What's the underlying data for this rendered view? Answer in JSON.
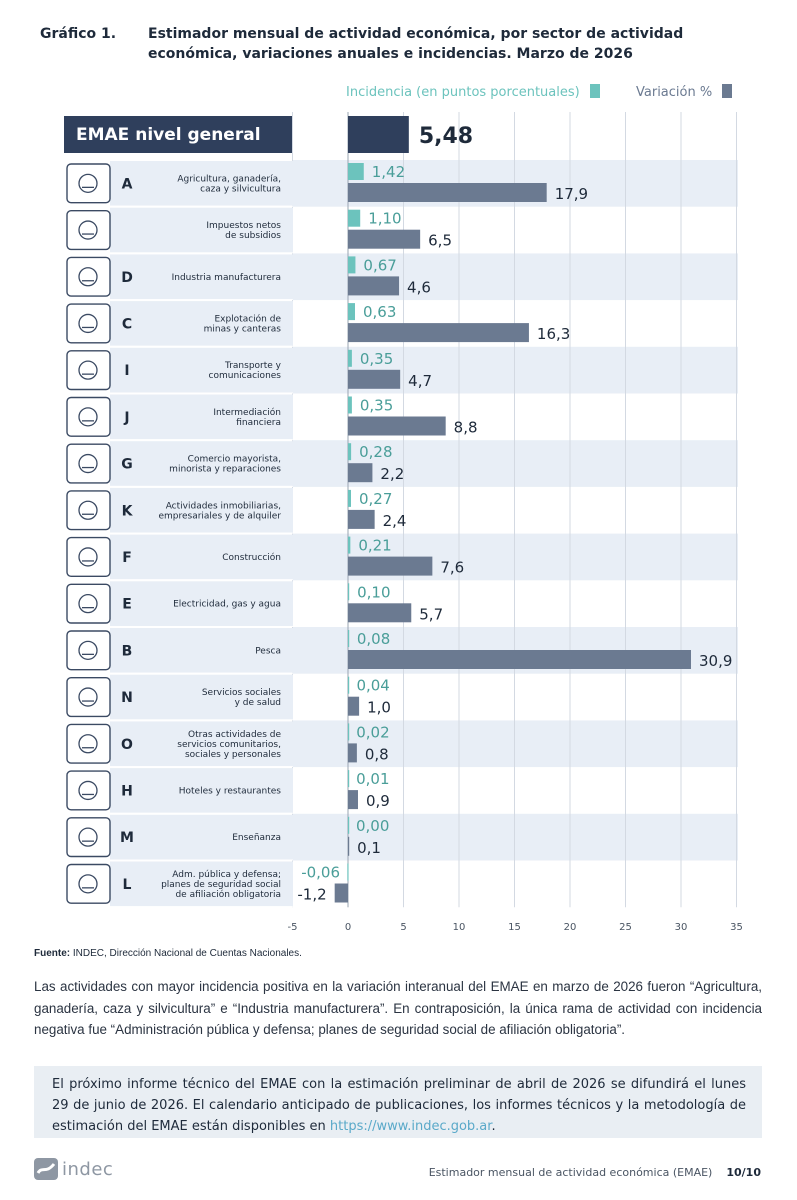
{
  "header": {
    "label": "Gráfico 1.",
    "title": "Estimador mensual de actividad económica, por sector de actividad económica, variaciones anuales e incidencias. Marzo de 2026"
  },
  "legend": {
    "incidence": "Incidencia (en puntos porcentuales)",
    "variation": "Variación %"
  },
  "colors": {
    "incidence": "#6cc3bd",
    "variation": "#6b7a91",
    "general_bar": "#2f3f5c",
    "label_bg": "#e8eef6",
    "stripe": "#e8eef6"
  },
  "chart_data": {
    "type": "bar",
    "orientation": "horizontal",
    "xlim": [
      -5,
      35
    ],
    "xticks": [
      "-5",
      "0",
      "5",
      "10",
      "15",
      "20",
      "25",
      "30",
      "35"
    ],
    "grid": true,
    "general": {
      "label": "EMAE nivel general",
      "value": 5.48,
      "value_label": "5,48"
    },
    "categories": [
      {
        "code": "A",
        "label": "Agricultura, ganadería,\ncaza y silvicultura",
        "icon": "tractor-icon"
      },
      {
        "code": "",
        "label": "Impuestos netos\nde subsidios",
        "icon": "tax-document-icon"
      },
      {
        "code": "D",
        "label": "Industria manufacturera",
        "icon": "gears-icon"
      },
      {
        "code": "C",
        "label": "Explotación de\nminas y canteras",
        "icon": "oil-pump-icon"
      },
      {
        "code": "I",
        "label": "Transporte y\ncomunicaciones",
        "icon": "bus-icon"
      },
      {
        "code": "J",
        "label": "Intermediación\nfinanciera",
        "icon": "bank-icon"
      },
      {
        "code": "G",
        "label": "Comercio mayorista,\nminorista y reparaciones",
        "icon": "shopping-cart-icon"
      },
      {
        "code": "K",
        "label": "Actividades inmobiliarias,\nempresariales y de alquiler",
        "icon": "monitor-key-icon"
      },
      {
        "code": "F",
        "label": "Construcción",
        "icon": "bricks-icon"
      },
      {
        "code": "E",
        "label": "Electricidad, gas y agua",
        "icon": "utilities-icon"
      },
      {
        "code": "B",
        "label": "Pesca",
        "icon": "fish-icon"
      },
      {
        "code": "N",
        "label": "Servicios sociales\ny de salud",
        "icon": "health-cross-icon"
      },
      {
        "code": "O",
        "label": "Otras actividades de\nservicios comunitarios,\nsociales y personales",
        "icon": "theater-masks-icon"
      },
      {
        "code": "H",
        "label": "Hoteles y restaurantes",
        "icon": "cutlery-icon"
      },
      {
        "code": "M",
        "label": "Enseñanza",
        "icon": "book-icon"
      },
      {
        "code": "L",
        "label": "Adm. pública y defensa;\nplanes de seguridad social\nde afiliación obligatoria",
        "icon": "government-building-icon"
      }
    ],
    "series": [
      {
        "name": "Incidencia (en puntos porcentuales)",
        "values": [
          1.42,
          1.1,
          0.67,
          0.63,
          0.35,
          0.35,
          0.28,
          0.27,
          0.21,
          0.1,
          0.08,
          0.04,
          0.02,
          0.01,
          0.0,
          -0.06
        ],
        "labels": [
          "1,42",
          "1,10",
          "0,67",
          "0,63",
          "0,35",
          "0,35",
          "0,28",
          "0,27",
          "0,21",
          "0,10",
          "0,08",
          "0,04",
          "0,02",
          "0,01",
          "0,00",
          "-0,06"
        ]
      },
      {
        "name": "Variación %",
        "values": [
          17.9,
          6.5,
          4.6,
          16.3,
          4.7,
          8.8,
          2.2,
          2.4,
          7.6,
          5.7,
          30.9,
          1.0,
          0.8,
          0.9,
          0.1,
          -1.2
        ],
        "labels": [
          "17,9",
          "6,5",
          "4,6",
          "16,3",
          "4,7",
          "8,8",
          "2,2",
          "2,4",
          "7,6",
          "5,7",
          "30,9",
          "1,0",
          "0,8",
          "0,9",
          "0,1",
          "-1,2"
        ]
      }
    ]
  },
  "source": {
    "bold": "Fuente:",
    "text": " INDEC, Dirección Nacional de Cuentas Nacionales."
  },
  "paragraph": "Las actividades con mayor incidencia positiva en la variación interanual del EMAE en marzo de 2026 fueron “Agricultura, ganadería, caza y silvicultura” e “Industria manufacturera”. En contraposición, la única rama de actividad con incidencia negativa fue “Administración pública y defensa; planes de seguridad social de afiliación obligatoria”.",
  "note": {
    "text": "El próximo informe técnico del EMAE con la estimación preliminar de abril de 2026 se difundirá el lunes 29 de junio de 2026. El calendario anticipado de publicaciones, los informes técnicos y la metodología de estimación del EMAE están disponibles en ",
    "link": "https://www.indec.gob.ar",
    "end": "."
  },
  "footer": {
    "logo": "indec",
    "title": "Estimador mensual de actividad económica (EMAE)",
    "page": "10/10"
  }
}
